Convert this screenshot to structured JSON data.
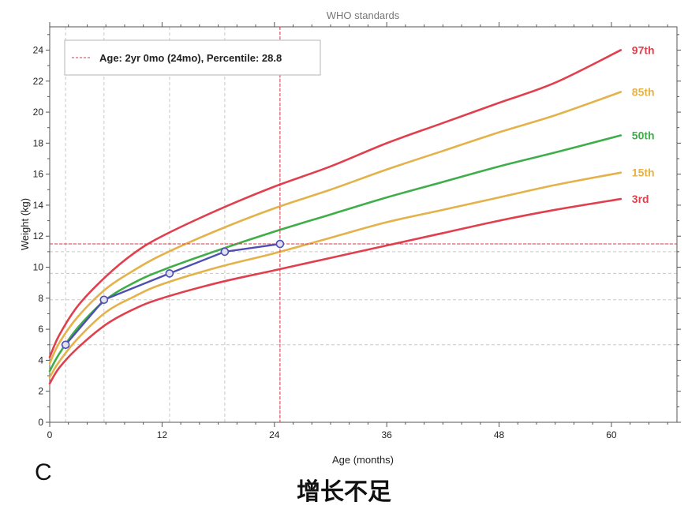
{
  "chart_data": {
    "type": "line",
    "title": "WHO standards",
    "xlabel": "Age (months)",
    "ylabel": "Weight (kg)",
    "xlim": [
      0,
      67
    ],
    "ylim": [
      0,
      25.5
    ],
    "xticks": [
      0,
      12,
      24,
      36,
      48,
      60
    ],
    "yticks": [
      0,
      2,
      4,
      6,
      8,
      10,
      12,
      14,
      16,
      18,
      20,
      22,
      24
    ],
    "grid": "dashed vertical lines at each measurement age; dashed horizontal lines at each measurement weight",
    "x": [
      0,
      1,
      3,
      6,
      9,
      12,
      18,
      24,
      30,
      36,
      42,
      48,
      54,
      61
    ],
    "series": [
      {
        "name": "97th",
        "color": "#e0404e",
        "values": [
          4.2,
          5.6,
          7.5,
          9.4,
          10.9,
          12.0,
          13.7,
          15.2,
          16.5,
          18.0,
          19.3,
          20.6,
          21.9,
          24.0
        ]
      },
      {
        "name": "85th",
        "color": "#e3b24a",
        "values": [
          3.8,
          5.1,
          6.8,
          8.6,
          9.8,
          10.8,
          12.4,
          13.8,
          15.0,
          16.3,
          17.5,
          18.7,
          19.8,
          21.3
        ]
      },
      {
        "name": "50th",
        "color": "#3fae49",
        "values": [
          3.3,
          4.4,
          6.1,
          7.9,
          9.0,
          9.8,
          11.1,
          12.3,
          13.4,
          14.5,
          15.5,
          16.5,
          17.4,
          18.5
        ]
      },
      {
        "name": "15th",
        "color": "#e3b24a",
        "values": [
          2.9,
          3.9,
          5.4,
          7.1,
          8.1,
          8.9,
          10.0,
          10.9,
          11.9,
          12.9,
          13.7,
          14.5,
          15.3,
          16.1
        ]
      },
      {
        "name": "3rd",
        "color": "#e0404e",
        "values": [
          2.5,
          3.5,
          4.8,
          6.3,
          7.3,
          8.0,
          9.0,
          9.8,
          10.6,
          11.4,
          12.2,
          13.0,
          13.7,
          14.4
        ]
      }
    ],
    "measurements": {
      "color": "#4f4fb3",
      "points": [
        {
          "x": 1.7,
          "y": 5.0
        },
        {
          "x": 5.8,
          "y": 7.9
        },
        {
          "x": 12.8,
          "y": 9.6
        },
        {
          "x": 18.7,
          "y": 11.0
        },
        {
          "x": 24.6,
          "y": 11.5
        }
      ]
    },
    "crosshair": {
      "x": 24.6,
      "y": 11.5,
      "color": "#d9384a"
    },
    "legend": {
      "text": "Age: 2yr 0mo (24mo), Percentile: 28.8",
      "position": "top-left"
    }
  },
  "panel_label": "C",
  "caption": "增长不足"
}
